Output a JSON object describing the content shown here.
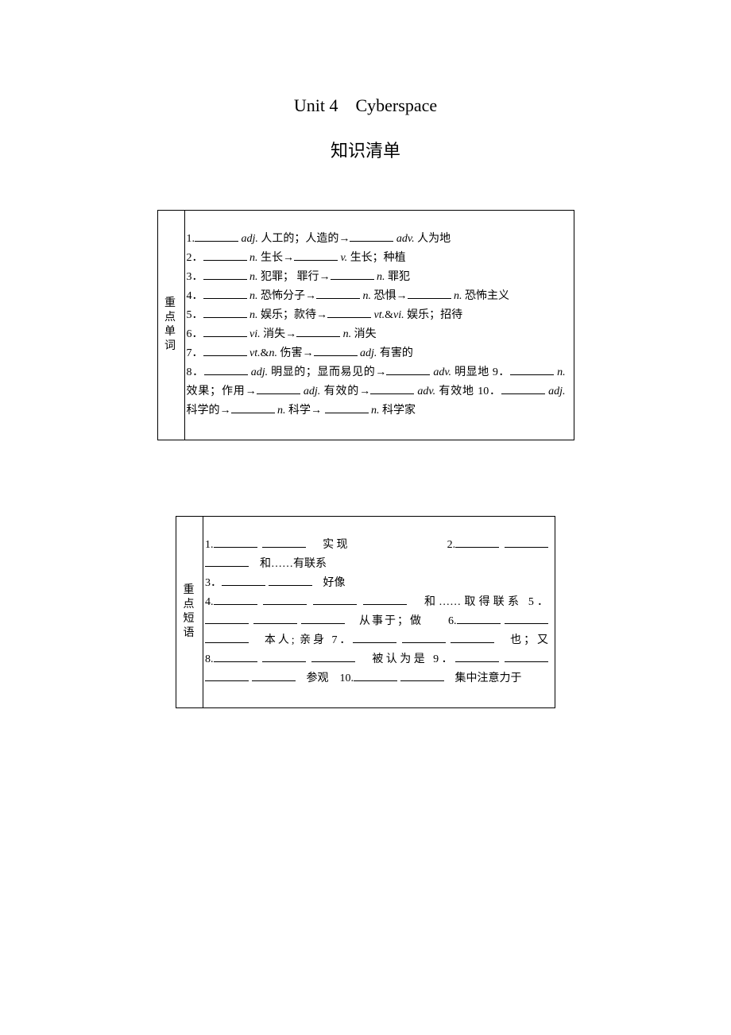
{
  "title": {
    "line1": "Unit 4　Cyberspace",
    "line2": "知识清单"
  },
  "box1": {
    "label": "重点单词",
    "items": [
      {
        "num": "1.",
        "parts": [
          "blank55",
          {
            "it": "adj."
          },
          " 人工的；人造的",
          "arrow",
          "blank55",
          {
            "it": "adv."
          },
          " 人为地"
        ]
      },
      {
        "num": "2．",
        "parts": [
          "blank55",
          {
            "it": "n."
          },
          " 生长",
          "arrow",
          "blank55",
          {
            "it": "v."
          },
          " 生长；种植"
        ]
      },
      {
        "num": "3．",
        "parts": [
          "blank55",
          {
            "it": "n."
          },
          " 犯罪； 罪行",
          "arrow",
          "blank55",
          {
            "it": "n."
          },
          " 罪犯"
        ]
      },
      {
        "num": "4．",
        "parts": [
          "blank55",
          {
            "it": "n."
          },
          " 恐怖分子",
          "arrow",
          "blank55",
          {
            "it": "n."
          },
          " 恐惧",
          "arrow",
          "blank55",
          {
            "it": "n."
          },
          " 恐怖主义"
        ]
      },
      {
        "num": "5．",
        "parts": [
          "blank55",
          {
            "it": "n."
          },
          " 娱乐；款待",
          "arrow",
          "blank55",
          {
            "it": "vt."
          },
          "&",
          {
            "it": "vi."
          },
          " 娱乐；招待"
        ]
      },
      {
        "num": "6．",
        "parts": [
          "blank55",
          {
            "it": "vi."
          },
          " 消失",
          "arrow",
          "blank55",
          {
            "it": "n."
          },
          " 消失"
        ]
      },
      {
        "num": "7．",
        "parts": [
          "blank55",
          {
            "it": "vt."
          },
          "&",
          {
            "it": "n."
          },
          " 伤害",
          "arrow",
          "blank55",
          {
            "it": "adj."
          },
          " 有害的"
        ]
      },
      {
        "num": "8．",
        "parts": [
          "blank55",
          {
            "it": "adj."
          },
          " 明显的；显而易见的",
          "arrow",
          "blank55",
          {
            "it": "adv."
          },
          " 明显地 9．",
          "blank55",
          {
            "it": "n."
          },
          " 效果；作用",
          "arrow",
          "blank55",
          {
            "it": "adj."
          },
          " 有效的",
          "arrow",
          "blank55",
          {
            "it": "adv."
          },
          " 有效地 10．",
          "blank55",
          {
            "it": "adj."
          },
          " 科学的",
          "arrow",
          "blank55",
          {
            "it": "n."
          },
          " 科学",
          "arrow",
          " ",
          "blank55",
          {
            "it": "n."
          },
          " 科学家"
        ]
      }
    ]
  },
  "box2": {
    "label": "重点短语",
    "lines": [
      "1.________ ________　实现　　　　　　　2.________ ________ ________　和……有联系",
      "3．________ ________　好像",
      "4.________ ________ ________ ________　和……取得联系 5．________ ________ ________　从事于；做　　6.________ ________ ________　本人; 亲身 7．________ ________ ________　也；又　　　　8.________ ________ ________　被认为是 9．________ ________ ________ ________　参观　10.________ ________　集中注意力于"
    ]
  },
  "colors": {
    "text": "#000000",
    "background": "#ffffff",
    "border": "#000000"
  }
}
